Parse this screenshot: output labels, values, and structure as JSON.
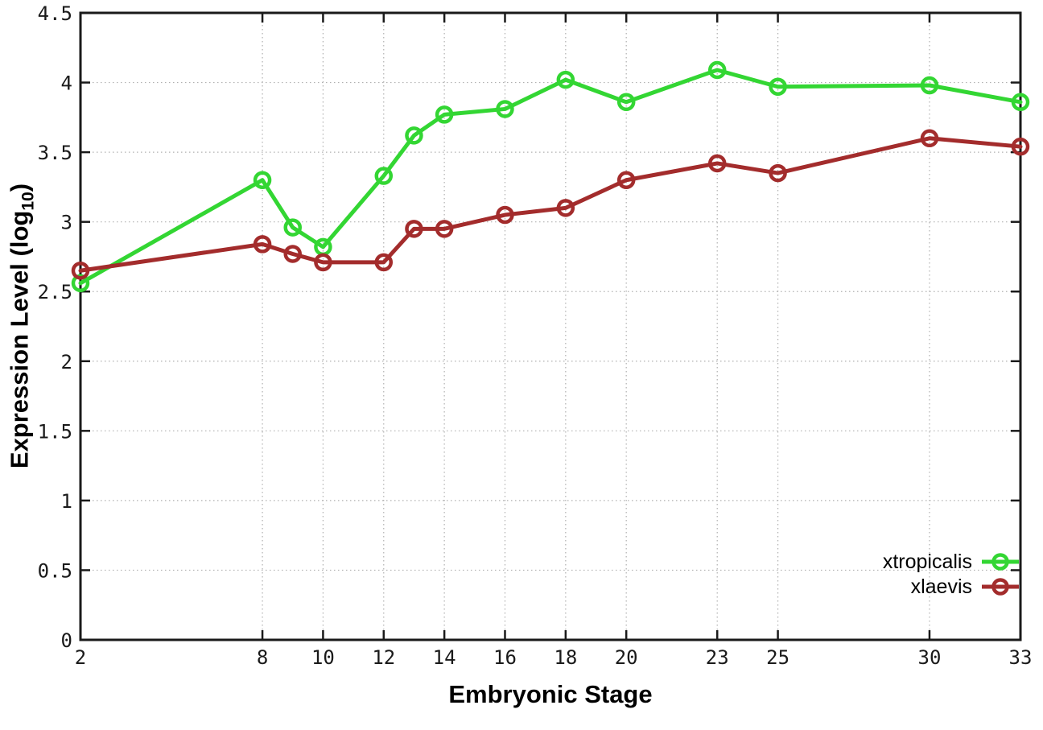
{
  "chart_data": {
    "type": "line",
    "title": "",
    "xlabel": "Embryonic Stage",
    "ylabel_pre": "Expression Level (log",
    "ylabel_sub": "10",
    "ylabel_post": ")",
    "xlim": [
      2,
      33
    ],
    "ylim": [
      0,
      4.5
    ],
    "grid": true,
    "legend_position": "bottom-right",
    "x_tick_values": [
      2,
      8,
      10,
      12,
      14,
      16,
      18,
      20,
      23,
      25,
      30,
      33
    ],
    "x_tick_labels": [
      "2",
      "8",
      "10",
      "12",
      "14",
      "16",
      "18",
      "20",
      "23",
      "25",
      "30",
      "33"
    ],
    "y_tick_values": [
      0,
      0.5,
      1,
      1.5,
      2,
      2.5,
      3,
      3.5,
      4,
      4.5
    ],
    "y_tick_labels": [
      "0",
      "0.5",
      "1",
      "1.5",
      "2",
      "2.5",
      "3",
      "3.5",
      "4",
      "4.5"
    ],
    "categories": [
      2,
      8,
      9,
      10,
      12,
      13,
      14,
      16,
      18,
      20,
      23,
      25,
      30,
      33
    ],
    "series": [
      {
        "name": "xtropicalis",
        "color": "#33d633",
        "x": [
          2,
          8,
          9,
          10,
          12,
          13,
          14,
          16,
          18,
          20,
          23,
          25,
          30,
          33
        ],
        "values": [
          2.56,
          3.3,
          2.96,
          2.82,
          3.33,
          3.62,
          3.77,
          3.81,
          4.02,
          3.86,
          4.09,
          3.97,
          3.98,
          3.86
        ]
      },
      {
        "name": "xlaevis",
        "color": "#a32c2c",
        "x": [
          2,
          8,
          9,
          10,
          12,
          13,
          14,
          16,
          18,
          20,
          23,
          25,
          30,
          33
        ],
        "values": [
          2.65,
          2.84,
          2.77,
          2.71,
          2.71,
          2.95,
          2.95,
          3.05,
          3.1,
          3.3,
          3.42,
          3.35,
          3.6,
          3.54
        ]
      }
    ],
    "axis_color": "#1a1a1a",
    "grid_color": "#b0b0b0",
    "text_color": "#1a1a1a"
  }
}
